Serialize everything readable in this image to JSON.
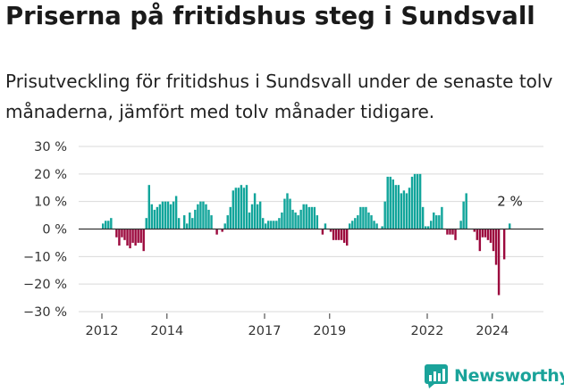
{
  "header": {
    "title": "Priserna på fritidshus steg i Sundsvall",
    "subtitle": "Prisutveckling för fritidshus i Sundsvall under de senaste tolv månaderna, jämfört med tolv månader tidigare."
  },
  "brand": {
    "name": "Newsworthy",
    "color": "#1aa39a"
  },
  "colors": {
    "positive": "#12a59b",
    "negative": "#9c0a3e",
    "grid": "#d9d9d9",
    "axis": "#333333"
  },
  "chart_data": {
    "type": "bar",
    "title": "",
    "xlabel": "",
    "ylabel": "",
    "ylim": [
      -30,
      30
    ],
    "yticks": [
      30,
      20,
      10,
      0,
      -10,
      -20,
      -30
    ],
    "ytick_labels": [
      "30 %",
      "20 %",
      "10 %",
      "0 %",
      "−10 %",
      "−20 %",
      "−30 %"
    ],
    "xticks": [
      {
        "year": 2012,
        "label": "2012"
      },
      {
        "year": 2014,
        "label": "2014"
      },
      {
        "year": 2017,
        "label": "2017"
      },
      {
        "year": 2019,
        "label": "2019"
      },
      {
        "year": 2022,
        "label": "2022"
      },
      {
        "year": 2024,
        "label": "2024"
      }
    ],
    "start": "2012-01",
    "frequency": "monthly",
    "grid": true,
    "values": [
      2,
      3,
      3,
      4,
      0,
      -3,
      -6,
      -3,
      -4,
      -6,
      -7,
      -5,
      -6,
      -5,
      -5,
      -8,
      4,
      16,
      9,
      7,
      8,
      9,
      10,
      10,
      10,
      9,
      10,
      12,
      4,
      0,
      5,
      2,
      6,
      4,
      7,
      9,
      10,
      10,
      9,
      7,
      5,
      0,
      -2,
      0,
      -1,
      2,
      5,
      8,
      14,
      15,
      15,
      16,
      15,
      16,
      6,
      9,
      13,
      9,
      10,
      4,
      2,
      3,
      3,
      3,
      3,
      4,
      6,
      11,
      13,
      11,
      7,
      6,
      5,
      7,
      9,
      9,
      8,
      8,
      8,
      5,
      0,
      -2,
      2,
      0,
      -1,
      -4,
      -4,
      -4,
      -4,
      -5,
      -6,
      2,
      3,
      4,
      5,
      8,
      8,
      8,
      6,
      5,
      3,
      2,
      0,
      1,
      10,
      19,
      19,
      18,
      16,
      16,
      13,
      14,
      13,
      15,
      19,
      20,
      20,
      20,
      8,
      1,
      1,
      3,
      6,
      5,
      5,
      8,
      0,
      -2,
      -2,
      -2,
      -4,
      0,
      3,
      10,
      13,
      0,
      0,
      -1,
      -4,
      -8,
      -3,
      -3,
      -4,
      -5,
      -8,
      -13,
      -24,
      0,
      -11,
      0,
      2
    ],
    "annotations": [
      {
        "text": "2 %"
      }
    ]
  }
}
